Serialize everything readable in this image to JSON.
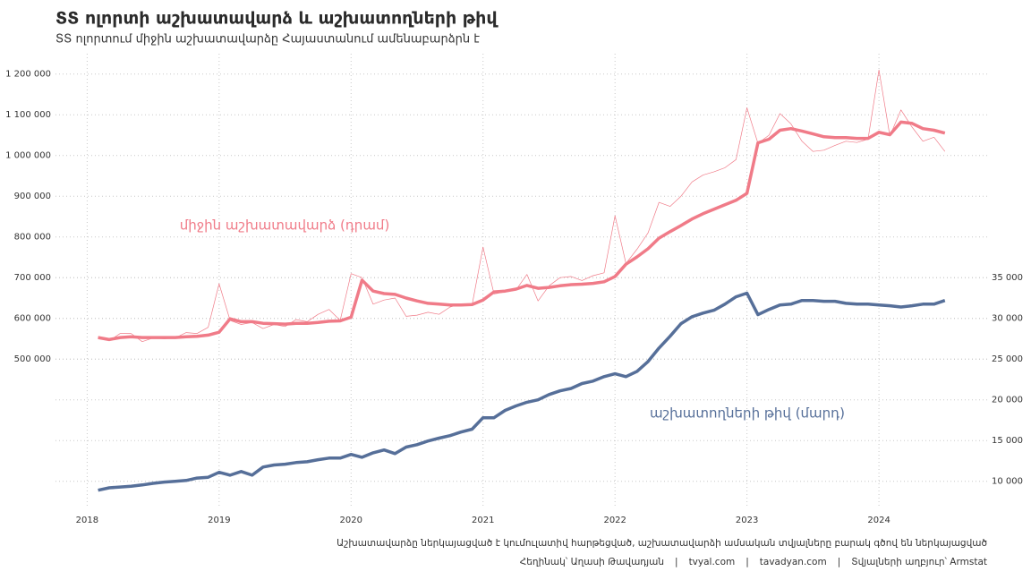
{
  "chart_data": {
    "type": "line",
    "title": "ՏՏ ոլորտի աշխատավարձ և աշխատողների թիվ",
    "subtitle": "ՏՏ ոլորտում միջին աշխատավարձը Հայաստանում ամենաբարձրն է",
    "caption": "Աշխատավարձը ներկայացված է կումուլատիվ հարթեցված, աշխատավարձի ամսական տվյալները բարակ գծով են ներկայացված",
    "credits": [
      "Հեղինակ՝ Աղասի Թավադյան",
      "tvyal.com",
      "tavadyan.com",
      "Տվյալների աղբյուր՝ Armstat"
    ],
    "grid": true,
    "x": [
      2018.083,
      2018.167,
      2018.25,
      2018.333,
      2018.417,
      2018.5,
      2018.583,
      2018.667,
      2018.75,
      2018.833,
      2018.917,
      2019,
      2019.083,
      2019.167,
      2019.25,
      2019.333,
      2019.417,
      2019.5,
      2019.583,
      2019.667,
      2019.75,
      2019.833,
      2019.917,
      2020,
      2020.083,
      2020.167,
      2020.25,
      2020.333,
      2020.417,
      2020.5,
      2020.583,
      2020.667,
      2020.75,
      2020.833,
      2020.917,
      2021,
      2021.083,
      2021.167,
      2021.25,
      2021.333,
      2021.417,
      2021.5,
      2021.583,
      2021.667,
      2021.75,
      2021.833,
      2021.917,
      2022,
      2022.083,
      2022.167,
      2022.25,
      2022.333,
      2022.417,
      2022.5,
      2022.583,
      2022.667,
      2022.75,
      2022.833,
      2022.917,
      2023,
      2023.083,
      2023.167,
      2023.25,
      2023.333,
      2023.417,
      2023.5,
      2023.583,
      2023.667,
      2023.75,
      2023.833,
      2023.917,
      2024,
      2024.083,
      2024.167,
      2024.25,
      2024.333,
      2024.417,
      2024.5
    ],
    "xlim": [
      2017.76,
      2024.82
    ],
    "xticks": [
      2018,
      2019,
      2020,
      2021,
      2022,
      2023,
      2024
    ],
    "ylim": [
      140000,
      1250000
    ],
    "yticks": [
      {
        "value": 500000,
        "label": "500 000"
      },
      {
        "value": 600000,
        "label": "600 000"
      },
      {
        "value": 700000,
        "label": "700 000"
      },
      {
        "value": 800000,
        "label": "800 000"
      },
      {
        "value": 900000,
        "label": "900 000"
      },
      {
        "value": 1000000,
        "label": "1 000 000"
      },
      {
        "value": 1100000,
        "label": "1 100 000"
      },
      {
        "value": 1200000,
        "label": "1 200 000"
      }
    ],
    "y2lim": [
      7000,
      62500
    ],
    "y2ticks": [
      {
        "value": 10000,
        "label": "10 000"
      },
      {
        "value": 15000,
        "label": "15 000"
      },
      {
        "value": 20000,
        "label": "20 000"
      },
      {
        "value": 25000,
        "label": "25 000"
      },
      {
        "value": 30000,
        "label": "30 000"
      },
      {
        "value": 35000,
        "label": "35 000"
      }
    ],
    "series": [
      {
        "color": "#f07b88",
        "line_width": 0.7,
        "values": [
          555000,
          545000,
          563000,
          563000,
          543000,
          552000,
          550000,
          552000,
          565000,
          563000,
          578000,
          685000,
          595000,
          585000,
          590000,
          575000,
          585000,
          580000,
          597000,
          592000,
          610000,
          622000,
          595000,
          710000,
          700000,
          635000,
          645000,
          650000,
          605000,
          608000,
          615000,
          610000,
          628000,
          635000,
          633000,
          775000,
          660000,
          665000,
          670000,
          708000,
          643000,
          680000,
          700000,
          703000,
          693000,
          705000,
          712000,
          852000,
          735000,
          770000,
          810000,
          885000,
          875000,
          900000,
          935000,
          952000,
          960000,
          970000,
          990000,
          1117000,
          1030000,
          1050000,
          1103000,
          1078000,
          1035000,
          1010000,
          1013000,
          1025000,
          1035000,
          1032000,
          1040000,
          1210000,
          1048000,
          1112000,
          1070000,
          1035000,
          1045000,
          1010000
        ]
      },
      {
        "name": "միջին աշխատավարձ (դրամ)",
        "color": "#f07b88",
        "line_width": 3.5,
        "values": [
          553000,
          548000,
          553000,
          555000,
          553000,
          553000,
          553000,
          553000,
          555000,
          556000,
          559000,
          566000,
          599000,
          592000,
          592000,
          588000,
          587000,
          586000,
          588000,
          588000,
          590000,
          593000,
          594000,
          603000,
          694000,
          667000,
          661000,
          659000,
          650000,
          643000,
          637000,
          635000,
          633000,
          633000,
          634000,
          645000,
          665000,
          667000,
          672000,
          681000,
          674000,
          676000,
          680000,
          683000,
          684000,
          686000,
          690000,
          703000,
          733000,
          751000,
          771000,
          797000,
          813000,
          828000,
          844000,
          857000,
          868000,
          879000,
          890000,
          907000,
          1031000,
          1040000,
          1062000,
          1066000,
          1060000,
          1053000,
          1046000,
          1044000,
          1044000,
          1042000,
          1042000,
          1057000,
          1051000,
          1082000,
          1079000,
          1066000,
          1062000,
          1055000
        ]
      },
      {
        "name": "աշխատողների թիվ (մարդ)",
        "color": "#566f99",
        "line_width": 3.5,
        "axis": "y2",
        "values": [
          8900,
          9200,
          9300,
          9400,
          9550,
          9750,
          9900,
          10000,
          10100,
          10400,
          10500,
          11100,
          10750,
          11200,
          10750,
          11750,
          12000,
          12100,
          12300,
          12400,
          12650,
          12850,
          12850,
          13300,
          12950,
          13500,
          13850,
          13400,
          14200,
          14500,
          14950,
          15300,
          15600,
          16050,
          16400,
          17800,
          17800,
          18700,
          19250,
          19700,
          20000,
          20650,
          21100,
          21400,
          22000,
          22300,
          22850,
          23200,
          22850,
          23500,
          24700,
          26350,
          27800,
          29350,
          30200,
          30650,
          31000,
          31750,
          32650,
          33100,
          30450,
          31100,
          31650,
          31750,
          32200,
          32200,
          32100,
          32100,
          31850,
          31750,
          31750,
          31650,
          31550,
          31400,
          31550,
          31750,
          31750,
          32200
        ]
      }
    ]
  }
}
